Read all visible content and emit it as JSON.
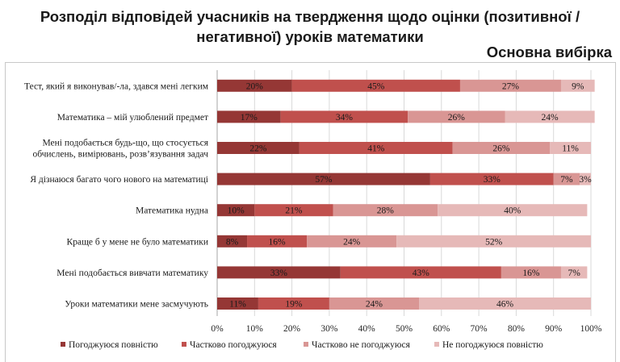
{
  "title_line1": "Розподіл відповідей учасників на твердження щодо оцінки (позитивної /",
  "title_line2": "негативної) уроків математики",
  "subtitle": "Основна вибірка",
  "chart_data": {
    "type": "bar",
    "orientation": "horizontal",
    "stacked": true,
    "unit": "%",
    "xlim": [
      0,
      100
    ],
    "x_ticks": [
      "0%",
      "10%",
      "20%",
      "30%",
      "40%",
      "50%",
      "60%",
      "70%",
      "80%",
      "90%",
      "100%"
    ],
    "grid": true,
    "legend_position": "bottom",
    "categories": [
      [
        "Тест, який я виконував/-ла, здався мені легким"
      ],
      [
        "Математика – мій улюблений предмет"
      ],
      [
        "Мені подобається будь-що, що стосується",
        "обчислень, вимірювань, розв’язування задач"
      ],
      [
        "Я дізнаюся багато чого нового на математиці"
      ],
      [
        "Математика нудна"
      ],
      [
        "Краще б у мене не було математики"
      ],
      [
        "Мені подобається вивчати математику"
      ],
      [
        "Уроки математики мене засмучують"
      ]
    ],
    "series": [
      {
        "name": "Погоджуюся повністю",
        "color": "#953735",
        "values": [
          20,
          17,
          22,
          57,
          10,
          8,
          33,
          11
        ]
      },
      {
        "name": "Частково погоджуюся",
        "color": "#c0504d",
        "values": [
          45,
          34,
          41,
          33,
          21,
          16,
          43,
          19
        ]
      },
      {
        "name": "Частково не погоджуюся",
        "color": "#d99694",
        "values": [
          27,
          26,
          26,
          7,
          28,
          24,
          16,
          24
        ]
      },
      {
        "name": "Не погоджуюся повністю",
        "color": "#e6b9b8",
        "values": [
          9,
          24,
          11,
          3,
          40,
          52,
          7,
          46
        ]
      }
    ],
    "value_labels": [
      [
        "20%",
        "45%",
        "27%",
        "9%"
      ],
      [
        "17%",
        "34%",
        "26%",
        "24%"
      ],
      [
        "22%",
        "41%",
        "26%",
        "11%"
      ],
      [
        "57%",
        "33%",
        "7%",
        "3%"
      ],
      [
        "10%",
        "21%",
        "28%",
        "40%"
      ],
      [
        "8%",
        "16%",
        "24%",
        "52%"
      ],
      [
        "33%",
        "43%",
        "16%",
        "7%"
      ],
      [
        "11%",
        "19%",
        "24%",
        "46%"
      ]
    ]
  }
}
